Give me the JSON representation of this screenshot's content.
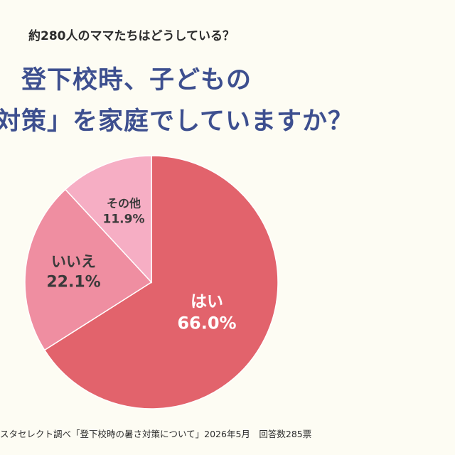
{
  "header": {
    "caption": "約280人のママたちはどうしている？",
    "title_line1": "登下校時、子どもの",
    "title_line2": "対策」を家庭でしていますか？"
  },
  "chart_data": {
    "type": "pie",
    "slices": [
      {
        "label": "はい",
        "value_label": "66.0%",
        "value": 66.0,
        "color": "#e2636c",
        "text_color": "#ffffff"
      },
      {
        "label": "いいえ",
        "value_label": "22.1%",
        "value": 22.1,
        "color": "#ef8ea1",
        "text_color": "#3a3a3a"
      },
      {
        "label": "その他",
        "value_label": "11.9%",
        "value": 11.9,
        "color": "#f6aec4",
        "text_color": "#3a3a3a"
      }
    ],
    "start_angle_deg": 0,
    "direction": "clockwise"
  },
  "footer": {
    "source": "スタセレクト調べ「登下校時の暑さ対策について」2026年5月　回答数285票"
  }
}
